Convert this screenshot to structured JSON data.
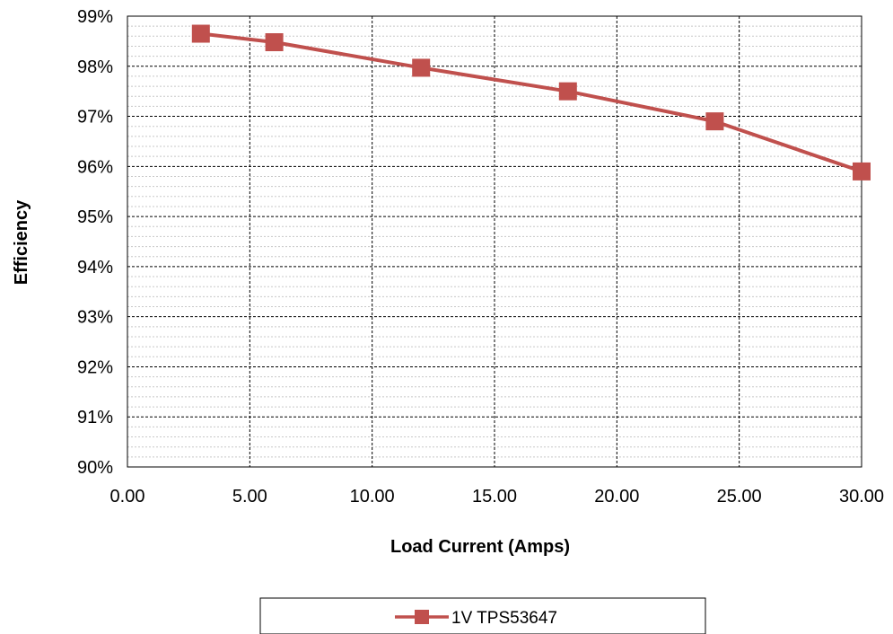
{
  "chart_data": {
    "type": "line",
    "xlabel": "Load Current (Amps)",
    "ylabel": "Efficiency",
    "xlim": [
      0,
      30
    ],
    "ylim": [
      90,
      99
    ],
    "x_ticks": [
      "0.00",
      "5.00",
      "10.00",
      "15.00",
      "20.00",
      "25.00",
      "30.00"
    ],
    "y_ticks": [
      "90%",
      "91%",
      "92%",
      "93%",
      "94%",
      "95%",
      "96%",
      "97%",
      "98%",
      "99%"
    ],
    "grid": true,
    "legend_position": "bottom",
    "series": [
      {
        "name": "1V TPS53647",
        "color": "#c0504d",
        "marker": "square",
        "x": [
          3,
          6,
          12,
          18,
          24,
          30
        ],
        "y": [
          98.65,
          98.48,
          97.97,
          97.5,
          96.9,
          95.9
        ]
      }
    ]
  }
}
